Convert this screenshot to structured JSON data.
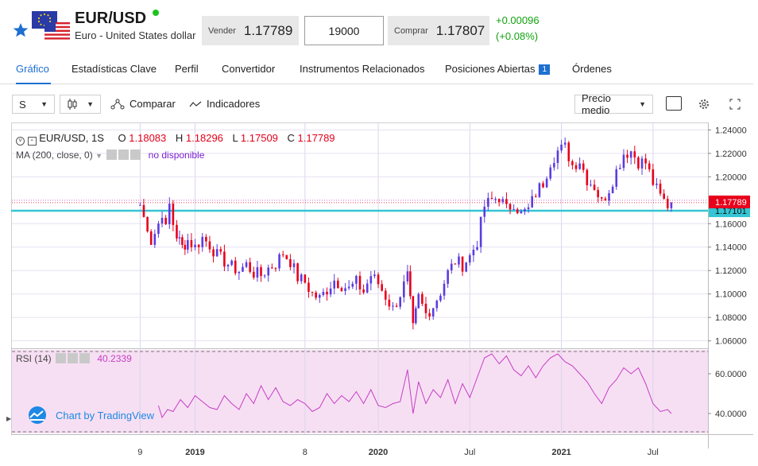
{
  "instrument": {
    "symbol": "EUR/USD",
    "description": "Euro - United States dollar"
  },
  "quote": {
    "sell_label": "Vender",
    "sell_value": "1.17789",
    "quantity": "19000",
    "buy_label": "Comprar",
    "buy_value": "1.17807",
    "change_abs": "+0.00096",
    "change_pct": "(+0.08%)"
  },
  "tabs": [
    {
      "label": "Gráfico"
    },
    {
      "label": "Estadísticas Clave"
    },
    {
      "label": "Perfil"
    },
    {
      "label": "Convertidor"
    },
    {
      "label": "Instrumentos Relacionados"
    },
    {
      "label": "Posiciones Abiertas",
      "badge": "1"
    },
    {
      "label": "Órdenes"
    }
  ],
  "toolbar": {
    "interval": "S",
    "compare_label": "Comparar",
    "indicators_label": "Indicadores",
    "price_type": "Precio medio"
  },
  "legend": {
    "series": "EUR/USD, 1S",
    "o_label": "O",
    "o_value": "1.18083",
    "h_label": "H",
    "h_value": "1.18296",
    "l_label": "L",
    "l_value": "1.17509",
    "c_label": "C",
    "c_value": "1.17789",
    "ma_label": "MA (200, close, 0)",
    "ma_value": "no disponible",
    "rsi_label": "RSI (14)",
    "rsi_value": "40.2339",
    "branding": "Chart by TradingView"
  },
  "colors": {
    "up": "#5b3ce0",
    "down": "#e8001b",
    "level_line": "#34c6d4",
    "rsi_line": "#c43fc4",
    "rsi_band": "#f7dff3",
    "accent": "#1e6fd1"
  },
  "chart_data": [
    {
      "type": "candlestick",
      "title": "EUR/USD, 1S",
      "y_ticks": [
        "1.24000",
        "1.22000",
        "1.20000",
        "1.17789",
        "1.17101",
        "1.16000",
        "1.14000",
        "1.12000",
        "1.10000",
        "1.08000",
        "1.06000"
      ],
      "ylim": [
        1.055,
        1.245
      ],
      "x_tick_labels": [
        "9",
        "2019",
        "8",
        "2020",
        "Jul",
        "2021",
        "Jul"
      ],
      "last_price": 1.17789,
      "level_price": 1.17101,
      "close_path": [
        [
          2018.7,
          1.176
        ],
        [
          2018.72,
          1.165
        ],
        [
          2018.74,
          1.158
        ],
        [
          2018.76,
          1.145
        ],
        [
          2018.78,
          1.152
        ],
        [
          2018.8,
          1.16
        ],
        [
          2018.82,
          1.17
        ],
        [
          2018.84,
          1.155
        ],
        [
          2018.86,
          1.176
        ],
        [
          2018.88,
          1.16
        ],
        [
          2018.9,
          1.15
        ],
        [
          2018.93,
          1.14
        ],
        [
          2018.96,
          1.146
        ],
        [
          2019.0,
          1.14
        ],
        [
          2019.04,
          1.148
        ],
        [
          2019.08,
          1.142
        ],
        [
          2019.12,
          1.133
        ],
        [
          2019.16,
          1.128
        ],
        [
          2019.2,
          1.123
        ],
        [
          2019.24,
          1.12
        ],
        [
          2019.28,
          1.125
        ],
        [
          2019.32,
          1.118
        ],
        [
          2019.36,
          1.116
        ],
        [
          2019.4,
          1.122
        ],
        [
          2019.44,
          1.126
        ],
        [
          2019.48,
          1.135
        ],
        [
          2019.52,
          1.128
        ],
        [
          2019.56,
          1.114
        ],
        [
          2019.6,
          1.11
        ],
        [
          2019.64,
          1.1
        ],
        [
          2019.68,
          1.096
        ],
        [
          2019.72,
          1.104
        ],
        [
          2019.76,
          1.112
        ],
        [
          2019.8,
          1.108
        ],
        [
          2019.84,
          1.104
        ],
        [
          2019.88,
          1.11
        ],
        [
          2019.92,
          1.102
        ],
        [
          2019.96,
          1.116
        ],
        [
          2020.0,
          1.109
        ],
        [
          2020.04,
          1.098
        ],
        [
          2020.08,
          1.087
        ],
        [
          2020.12,
          1.1
        ],
        [
          2020.16,
          1.115
        ],
        [
          2020.19,
          1.07
        ],
        [
          2020.22,
          1.097
        ],
        [
          2020.26,
          1.083
        ],
        [
          2020.3,
          1.09
        ],
        [
          2020.34,
          1.102
        ],
        [
          2020.38,
          1.118
        ],
        [
          2020.42,
          1.128
        ],
        [
          2020.46,
          1.125
        ],
        [
          2020.5,
          1.132
        ],
        [
          2020.54,
          1.145
        ],
        [
          2020.58,
          1.175
        ],
        [
          2020.62,
          1.18
        ],
        [
          2020.66,
          1.183
        ],
        [
          2020.7,
          1.172
        ],
        [
          2020.74,
          1.178
        ],
        [
          2020.78,
          1.168
        ],
        [
          2020.82,
          1.172
        ],
        [
          2020.86,
          1.186
        ],
        [
          2020.9,
          1.195
        ],
        [
          2020.94,
          1.213
        ],
        [
          2020.98,
          1.222
        ],
        [
          2021.02,
          1.225
        ],
        [
          2021.06,
          1.21
        ],
        [
          2021.1,
          1.214
        ],
        [
          2021.14,
          1.198
        ],
        [
          2021.18,
          1.192
        ],
        [
          2021.22,
          1.178
        ],
        [
          2021.26,
          1.19
        ],
        [
          2021.3,
          1.205
        ],
        [
          2021.34,
          1.22
        ],
        [
          2021.38,
          1.222
        ],
        [
          2021.42,
          1.213
        ],
        [
          2021.46,
          1.212
        ],
        [
          2021.5,
          1.195
        ],
        [
          2021.54,
          1.183
        ],
        [
          2021.58,
          1.176
        ],
        [
          2021.6,
          1.178
        ]
      ]
    },
    {
      "type": "line",
      "title": "RSI (14)",
      "y_ticks": [
        "60.0000",
        "40.0000"
      ],
      "ylim": [
        30,
        72
      ],
      "series": [
        {
          "name": "RSI (14)",
          "values": [
            [
              2018.8,
              44
            ],
            [
              2018.82,
              38
            ],
            [
              2018.85,
              42
            ],
            [
              2018.88,
              41
            ],
            [
              2018.92,
              47
            ],
            [
              2018.96,
              43
            ],
            [
              2019.0,
              49
            ],
            [
              2019.04,
              46
            ],
            [
              2019.08,
              43
            ],
            [
              2019.12,
              42
            ],
            [
              2019.16,
              49
            ],
            [
              2019.2,
              45
            ],
            [
              2019.24,
              42
            ],
            [
              2019.28,
              50
            ],
            [
              2019.32,
              45
            ],
            [
              2019.36,
              54
            ],
            [
              2019.4,
              47
            ],
            [
              2019.44,
              53
            ],
            [
              2019.48,
              46
            ],
            [
              2019.52,
              44
            ],
            [
              2019.56,
              47
            ],
            [
              2019.6,
              45
            ],
            [
              2019.64,
              41
            ],
            [
              2019.68,
              43
            ],
            [
              2019.72,
              50
            ],
            [
              2019.76,
              45
            ],
            [
              2019.8,
              49
            ],
            [
              2019.84,
              46
            ],
            [
              2019.88,
              51
            ],
            [
              2019.92,
              45
            ],
            [
              2019.96,
              52
            ],
            [
              2020.0,
              44
            ],
            [
              2020.04,
              43
            ],
            [
              2020.08,
              45
            ],
            [
              2020.12,
              46
            ],
            [
              2020.16,
              62
            ],
            [
              2020.19,
              40
            ],
            [
              2020.22,
              56
            ],
            [
              2020.26,
              45
            ],
            [
              2020.3,
              52
            ],
            [
              2020.34,
              48
            ],
            [
              2020.38,
              57
            ],
            [
              2020.42,
              45
            ],
            [
              2020.46,
              55
            ],
            [
              2020.5,
              48
            ],
            [
              2020.54,
              58
            ],
            [
              2020.58,
              68
            ],
            [
              2020.62,
              70
            ],
            [
              2020.66,
              65
            ],
            [
              2020.7,
              69
            ],
            [
              2020.74,
              62
            ],
            [
              2020.78,
              59
            ],
            [
              2020.82,
              64
            ],
            [
              2020.86,
              58
            ],
            [
              2020.9,
              64
            ],
            [
              2020.94,
              68
            ],
            [
              2020.98,
              70
            ],
            [
              2021.02,
              66
            ],
            [
              2021.06,
              64
            ],
            [
              2021.1,
              60
            ],
            [
              2021.14,
              56
            ],
            [
              2021.18,
              50
            ],
            [
              2021.22,
              45
            ],
            [
              2021.26,
              53
            ],
            [
              2021.3,
              57
            ],
            [
              2021.34,
              63
            ],
            [
              2021.38,
              60
            ],
            [
              2021.42,
              63
            ],
            [
              2021.46,
              55
            ],
            [
              2021.5,
              45
            ],
            [
              2021.54,
              41
            ],
            [
              2021.58,
              42
            ],
            [
              2021.6,
              40
            ]
          ]
        }
      ]
    }
  ]
}
